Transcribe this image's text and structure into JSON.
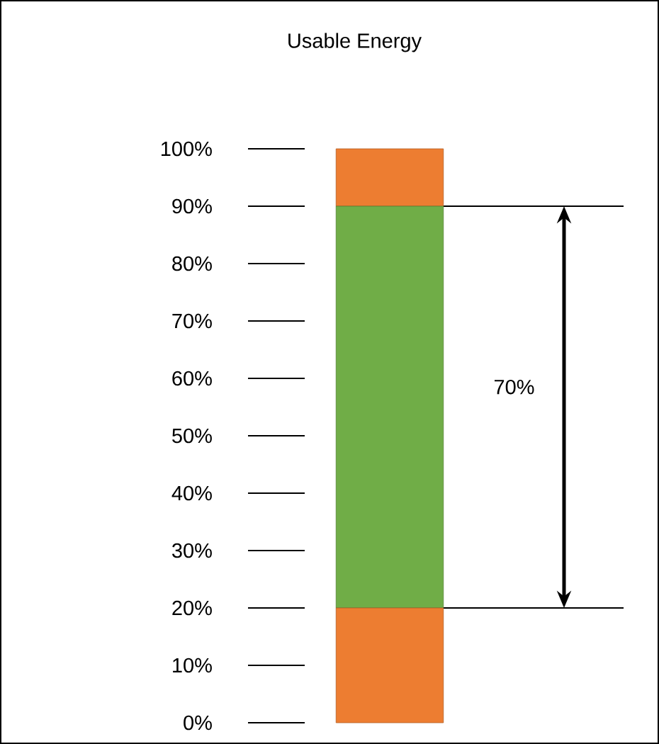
{
  "chart_data": {
    "type": "bar",
    "title": "Usable Energy",
    "stacked": true,
    "categories": [
      null
    ],
    "series": [
      {
        "color": "#ed7d31",
        "values": [
          20
        ]
      },
      {
        "color": "#70ad47",
        "values": [
          70
        ]
      },
      {
        "color": "#ed7d31",
        "values": [
          10
        ]
      }
    ],
    "ylim": [
      0,
      100
    ],
    "yticks": [
      {
        "value": 0,
        "label": "0%"
      },
      {
        "value": 10,
        "label": "10%"
      },
      {
        "value": 20,
        "label": "20%"
      },
      {
        "value": 30,
        "label": "30%"
      },
      {
        "value": 40,
        "label": "40%"
      },
      {
        "value": 50,
        "label": "50%"
      },
      {
        "value": 60,
        "label": "60%"
      },
      {
        "value": 70,
        "label": "70%"
      },
      {
        "value": 80,
        "label": "80%"
      },
      {
        "value": 90,
        "label": "90%"
      },
      {
        "value": 100,
        "label": "100%"
      }
    ],
    "tick_labels": "y",
    "grid": false,
    "ref_lines": [
      {
        "axis": "y",
        "value": 20
      },
      {
        "axis": "y",
        "value": 90
      }
    ],
    "annotations": [
      "70%"
    ]
  }
}
